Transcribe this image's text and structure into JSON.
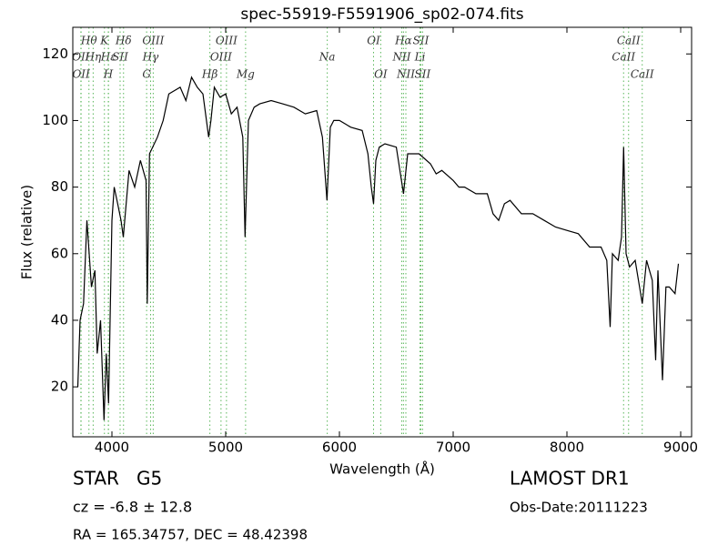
{
  "chart_data": {
    "type": "line",
    "title": "spec-55919-F5591906_sp02-074.fits",
    "xlabel": "Wavelength (Å)",
    "ylabel": "Flux (relative)",
    "xlim": [
      3656,
      9096
    ],
    "ylim": [
      5,
      128
    ],
    "xticks": [
      4000,
      5000,
      6000,
      7000,
      8000,
      9000
    ],
    "yticks": [
      20,
      40,
      60,
      80,
      100,
      120
    ],
    "color": "#000000",
    "line_color": "#5cb85c",
    "x": [
      3700,
      3720,
      3750,
      3780,
      3800,
      3820,
      3850,
      3870,
      3900,
      3930,
      3950,
      3970,
      4000,
      4020,
      4050,
      4080,
      4100,
      4150,
      4200,
      4250,
      4300,
      4310,
      4330,
      4400,
      4450,
      4500,
      4600,
      4650,
      4700,
      4750,
      4800,
      4850,
      4870,
      4900,
      4950,
      5000,
      5050,
      5100,
      5150,
      5170,
      5200,
      5250,
      5300,
      5400,
      5500,
      5600,
      5700,
      5800,
      5850,
      5890,
      5920,
      5950,
      6000,
      6100,
      6200,
      6250,
      6280,
      6300,
      6320,
      6350,
      6400,
      6500,
      6563,
      6600,
      6700,
      6800,
      6850,
      6900,
      7000,
      7050,
      7100,
      7200,
      7300,
      7350,
      7400,
      7450,
      7500,
      7600,
      7700,
      7800,
      7900,
      8000,
      8100,
      8200,
      8300,
      8350,
      8380,
      8400,
      8450,
      8480,
      8498,
      8520,
      8550,
      8600,
      8662,
      8700,
      8750,
      8780,
      8800,
      8840,
      8870,
      8900,
      8950,
      8980
    ],
    "values": [
      20,
      40,
      45,
      70,
      60,
      50,
      55,
      30,
      40,
      10,
      30,
      15,
      70,
      80,
      75,
      70,
      65,
      85,
      80,
      88,
      82,
      45,
      90,
      95,
      100,
      108,
      110,
      106,
      113,
      110,
      108,
      95,
      100,
      110,
      107,
      108,
      102,
      104,
      95,
      65,
      100,
      104,
      105,
      106,
      105,
      104,
      102,
      103,
      95,
      76,
      98,
      100,
      100,
      98,
      97,
      90,
      80,
      75,
      88,
      92,
      93,
      92,
      78,
      90,
      90,
      87,
      84,
      85,
      82,
      80,
      80,
      78,
      78,
      72,
      70,
      75,
      76,
      72,
      72,
      70,
      68,
      67,
      66,
      62,
      62,
      58,
      38,
      60,
      58,
      65,
      92,
      60,
      56,
      58,
      45,
      58,
      52,
      28,
      55,
      22,
      50,
      50,
      48,
      57
    ],
    "lines": [
      {
        "label": "Hθ",
        "x": 3798
      },
      {
        "label": "K",
        "x": 3934
      },
      {
        "label": "Hδ",
        "x": 4102
      },
      {
        "label": "OIII",
        "x": 4363
      },
      {
        "label": "OIII",
        "x": 5007
      },
      {
        "label": "OI",
        "x": 6300
      },
      {
        "label": "Hα",
        "x": 6563
      },
      {
        "label": "SII",
        "x": 6716
      },
      {
        "label": "CaII",
        "x": 8542
      },
      {
        "label": "OII",
        "x": 3727
      },
      {
        "label": "Hη",
        "x": 3835
      },
      {
        "label": "Hε",
        "x": 3970
      },
      {
        "label": "SII",
        "x": 4072
      },
      {
        "label": "Hγ",
        "x": 4340
      },
      {
        "label": "OIII",
        "x": 4959
      },
      {
        "label": "Na",
        "x": 5893
      },
      {
        "label": "NII",
        "x": 6548
      },
      {
        "label": "Li",
        "x": 6708
      },
      {
        "label": "CaII",
        "x": 8498
      },
      {
        "label": "OII",
        "x": 3729
      },
      {
        "label": "H",
        "x": 3968
      },
      {
        "label": "G",
        "x": 4305
      },
      {
        "label": "Hβ",
        "x": 4861
      },
      {
        "label": "Mg",
        "x": 5175
      },
      {
        "label": "OI",
        "x": 6363
      },
      {
        "label": "NII",
        "x": 6584
      },
      {
        "label": "SII",
        "x": 6731
      },
      {
        "label": "CaII",
        "x": 8662
      }
    ]
  },
  "info": {
    "object": "STAR   G5",
    "cz": "cz = -6.8 ± 12.8",
    "coords": "RA = 165.34757, DEC = 48.42398",
    "survey": "LAMOST DR1",
    "date": "Obs-Date:20111223"
  }
}
